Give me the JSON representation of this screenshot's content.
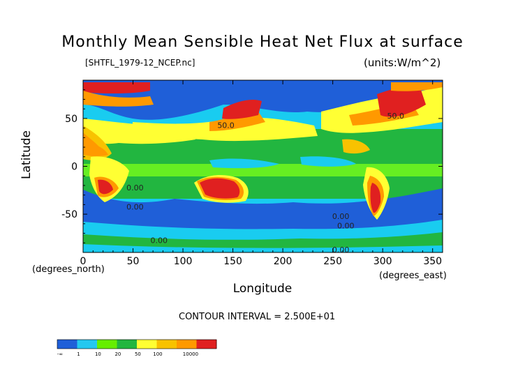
{
  "chart": {
    "title": "Monthly Mean Sensible Heat Net Flux at surface",
    "file_label": "[SHTFL_1979-12_NCEP.nc]",
    "units": "(units:W/m^2)",
    "ylabel": "Latitude",
    "xlabel": "Longitude",
    "x_unit": "(degrees_east)",
    "y_unit": "(degrees_north)",
    "contour_interval": "CONTOUR INTERVAL = 2.500E+01"
  },
  "chart_data": {
    "type": "heatmap",
    "title": "Monthly Mean Sensible Heat Net Flux at surface",
    "xlabel": "Longitude",
    "ylabel": "Latitude",
    "xlim": [
      0,
      360
    ],
    "ylim": [
      -90,
      90
    ],
    "x_ticks": [
      "0",
      "50",
      "100",
      "150",
      "200",
      "250",
      "300",
      "350"
    ],
    "y_ticks": [
      "50",
      "0",
      "-50"
    ],
    "contour_labels": [
      {
        "text": "50.0",
        "lon": 143,
        "lat": 40
      },
      {
        "text": "50.0",
        "lon": 313,
        "lat": 50
      },
      {
        "text": "0.00",
        "lon": 52,
        "lat": -25
      },
      {
        "text": "0.00",
        "lon": 52,
        "lat": -45
      },
      {
        "text": "0.00",
        "lon": 258,
        "lat": -55
      },
      {
        "text": "0.00",
        "lon": 263,
        "lat": -65
      },
      {
        "text": "0.00",
        "lon": 76,
        "lat": -80
      },
      {
        "text": "0.00",
        "lon": 258,
        "lat": -90
      }
    ],
    "colorbar": {
      "labels": [
        "-∞",
        "1",
        "10",
        "20",
        "50",
        "100",
        "10000"
      ],
      "colors": [
        "#1f5fd8",
        "#24c8f0",
        "#66ee00",
        "#22b63f",
        "#ffff33",
        "#f8c200",
        "#ff9900",
        "#e02020"
      ]
    },
    "legend": "bottom-left"
  }
}
